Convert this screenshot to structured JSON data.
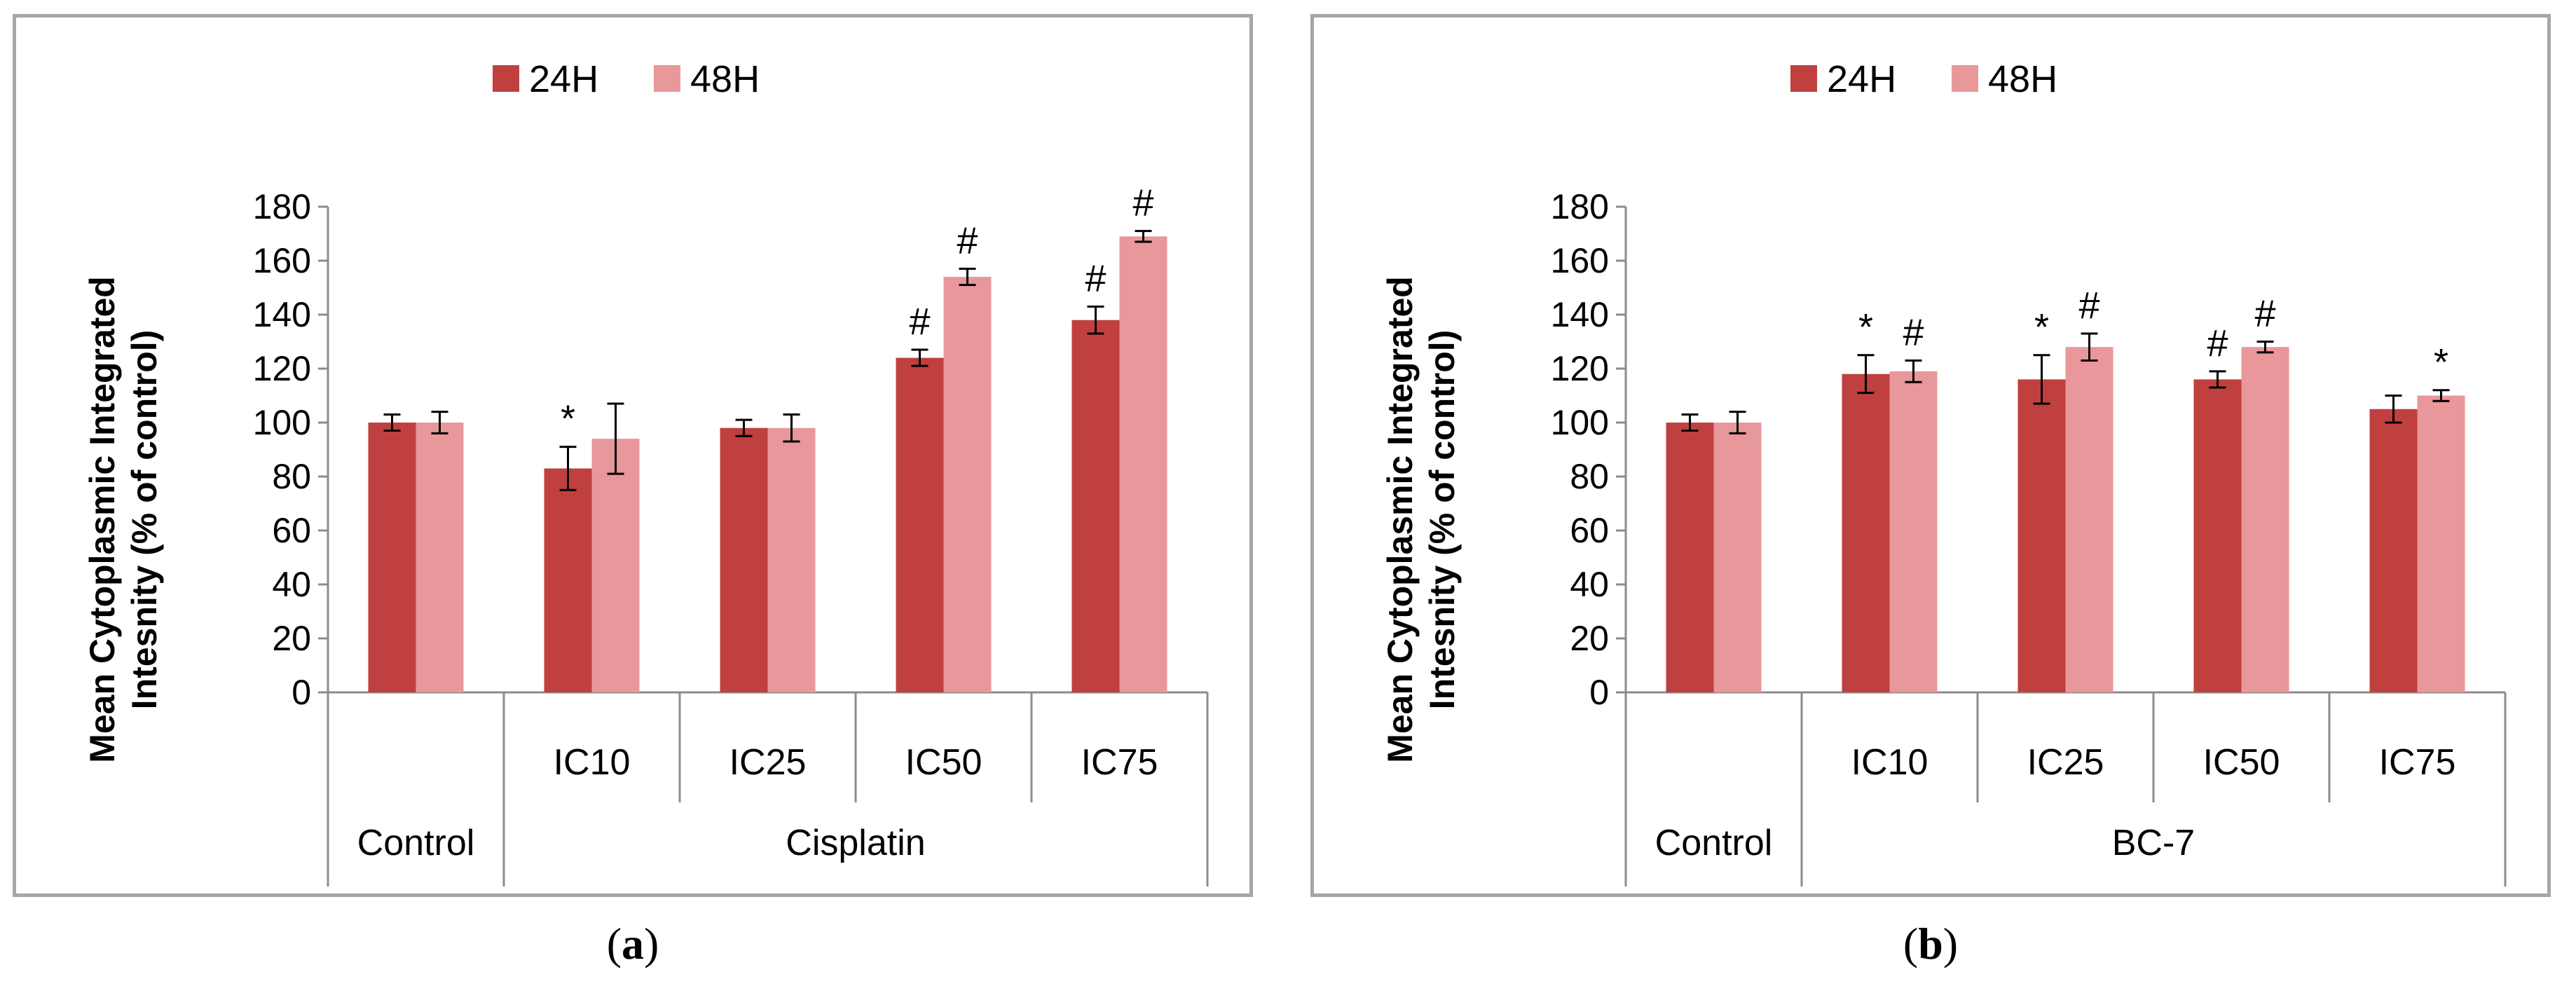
{
  "colors": {
    "h24": "#c0403f",
    "h48": "#e8979a",
    "axis": "#8c8c8c",
    "border": "#a6a6a6"
  },
  "chart_data": [
    {
      "type": "bar",
      "panel_label": "a",
      "ylabel_line1": "Mean Cytoplasmic Integrated",
      "ylabel_line2": "Intesnity (% of control)",
      "ylim": [
        0,
        180
      ],
      "yticks": [
        0,
        20,
        40,
        60,
        80,
        100,
        120,
        140,
        160,
        180
      ],
      "group_label": "Cisplatin",
      "control_label": "Control",
      "categories": [
        "Control",
        "IC10",
        "IC25",
        "IC50",
        "IC75"
      ],
      "series": [
        {
          "name": "24H",
          "values": [
            100,
            83,
            98,
            124,
            138
          ],
          "errors": [
            3,
            8,
            3,
            3,
            5
          ],
          "sig": [
            "",
            "*",
            "",
            "#",
            "#"
          ]
        },
        {
          "name": "48H",
          "values": [
            100,
            94,
            98,
            154,
            169
          ],
          "errors": [
            4,
            13,
            5,
            3,
            2
          ],
          "sig": [
            "",
            "",
            "",
            "#",
            "#"
          ]
        }
      ]
    },
    {
      "type": "bar",
      "panel_label": "b",
      "ylabel_line1": "Mean Cytoplasmic Integrated",
      "ylabel_line2": "Intesnity (% of control)",
      "ylim": [
        0,
        180
      ],
      "yticks": [
        0,
        20,
        40,
        60,
        80,
        100,
        120,
        140,
        160,
        180
      ],
      "group_label": "BC-7",
      "control_label": "Control",
      "categories": [
        "Control",
        "IC10",
        "IC25",
        "IC50",
        "IC75"
      ],
      "series": [
        {
          "name": "24H",
          "values": [
            100,
            118,
            116,
            116,
            105
          ],
          "errors": [
            3,
            7,
            9,
            3,
            5
          ],
          "sig": [
            "",
            "*",
            "*",
            "#",
            ""
          ]
        },
        {
          "name": "48H",
          "values": [
            100,
            119,
            128,
            128,
            110
          ],
          "errors": [
            4,
            4,
            5,
            2,
            2
          ],
          "sig": [
            "",
            "#",
            "#",
            "#",
            "*"
          ]
        }
      ]
    }
  ]
}
